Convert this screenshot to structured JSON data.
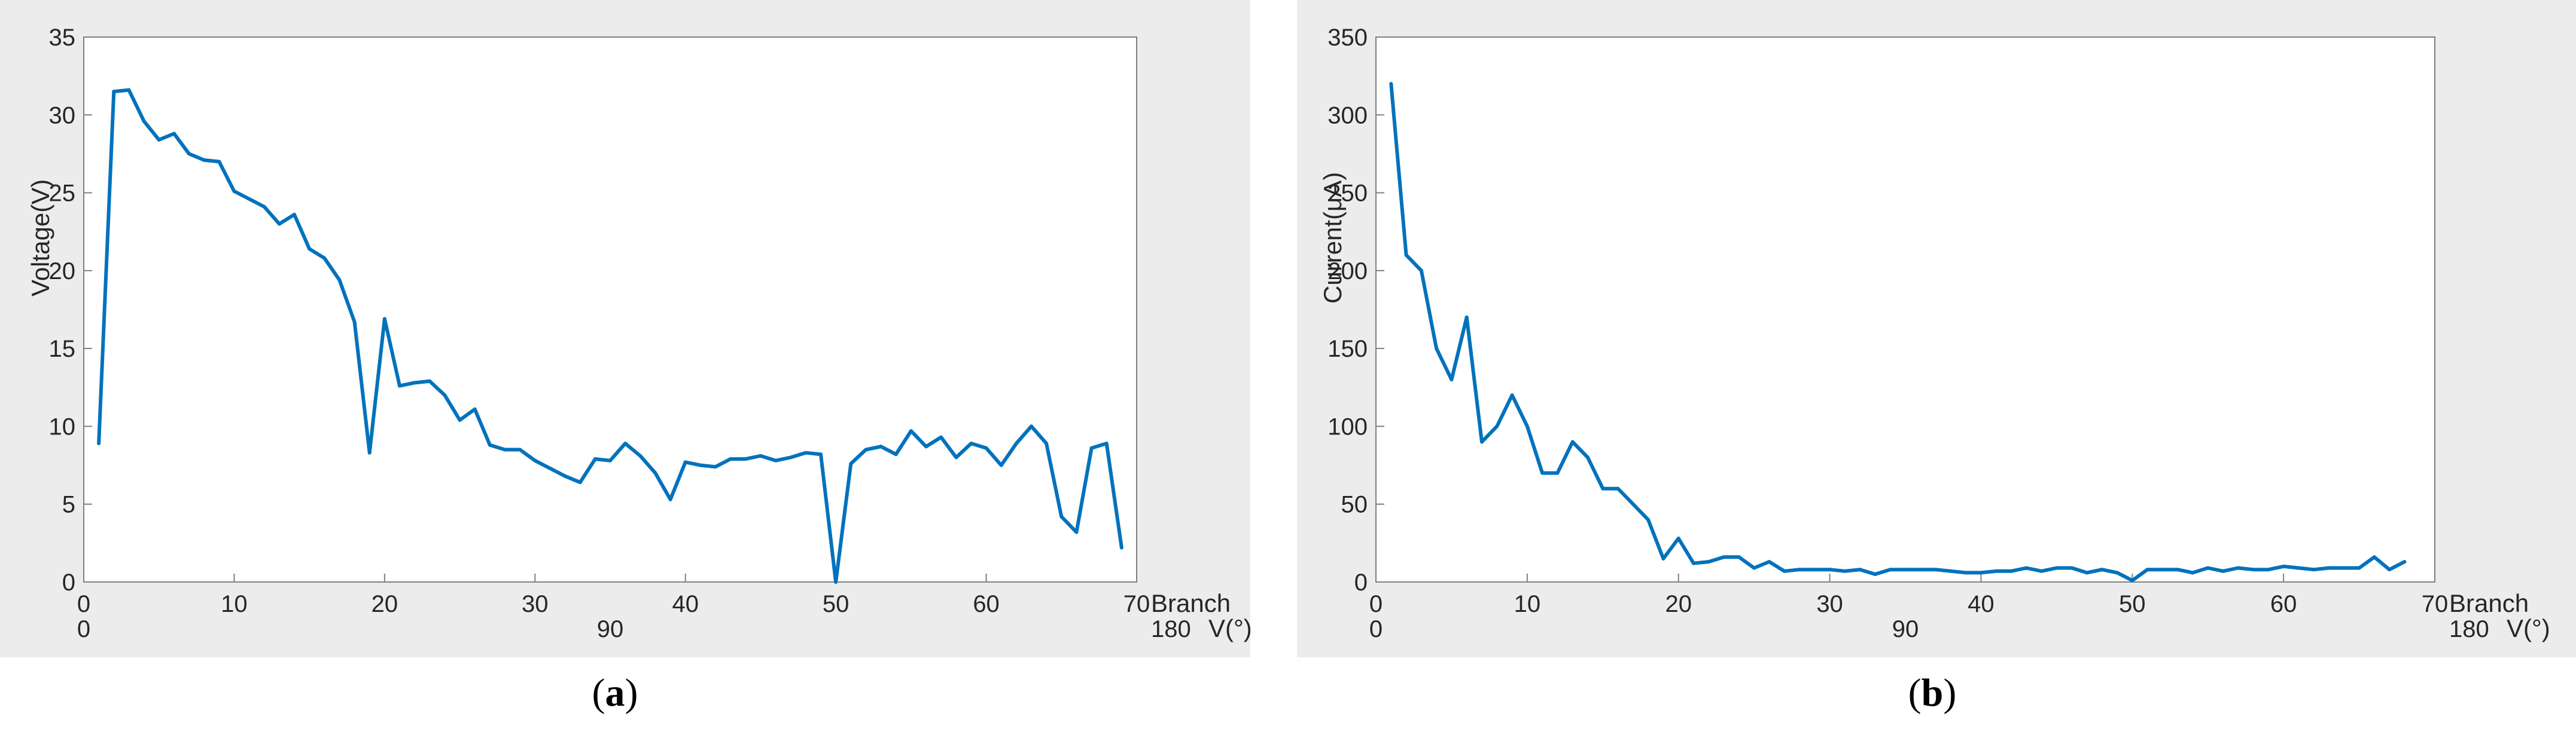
{
  "chart_data": [
    {
      "type": "line",
      "id": "a",
      "caption_label": "a",
      "ylabel": "Voltage(V)",
      "xlabel": "Branch",
      "secondary_xlabel": "V(°)",
      "ylim": [
        0,
        35
      ],
      "xlim": [
        0,
        70
      ],
      "yticks": [
        0,
        5,
        10,
        15,
        20,
        25,
        30,
        35
      ],
      "xticks": [
        0,
        10,
        20,
        30,
        40,
        50,
        60,
        70
      ],
      "secondary_xticks": [
        "0",
        "90",
        "180"
      ],
      "series": [
        {
          "x": [
            1,
            2,
            3,
            4,
            5,
            6,
            7,
            8,
            9,
            10,
            11,
            12,
            13,
            14,
            15,
            16,
            17,
            18,
            19,
            20,
            21,
            22,
            23,
            24,
            25,
            26,
            27,
            28,
            29,
            30,
            31,
            32,
            33,
            34,
            35,
            36,
            37,
            38,
            39,
            40,
            41,
            42,
            43,
            44,
            45,
            46,
            47,
            48,
            49,
            50,
            51,
            52,
            53,
            54,
            55,
            56,
            57,
            58,
            59,
            60,
            61,
            62,
            63,
            64,
            65,
            66,
            67,
            68,
            69
          ],
          "values": [
            8.9,
            31.5,
            31.6,
            29.6,
            28.4,
            28.8,
            27.5,
            27.1,
            27.0,
            25.1,
            24.6,
            24.1,
            23.0,
            23.6,
            21.4,
            20.8,
            19.4,
            16.7,
            8.3,
            16.9,
            12.6,
            12.8,
            12.9,
            12.0,
            10.4,
            11.1,
            8.8,
            8.5,
            8.5,
            7.8,
            7.3,
            6.8,
            6.4,
            7.9,
            7.8,
            8.9,
            8.1,
            7.0,
            5.3,
            7.7,
            7.5,
            7.4,
            7.9,
            7.9,
            8.1,
            7.8,
            8.0,
            8.3,
            8.2,
            0.0,
            7.6,
            8.5,
            8.7,
            8.2,
            9.7,
            8.7,
            9.3,
            8.0,
            8.9,
            8.6,
            7.5,
            8.9,
            10.0,
            8.9,
            4.2,
            3.2,
            8.6,
            8.9,
            2.2
          ]
        }
      ]
    },
    {
      "type": "line",
      "id": "b",
      "caption_label": "b",
      "ylabel": "Current(μA)",
      "xlabel": "Branch",
      "secondary_xlabel": "V(°)",
      "ylim": [
        0,
        350
      ],
      "xlim": [
        0,
        70
      ],
      "yticks": [
        0,
        50,
        100,
        150,
        200,
        250,
        300,
        350
      ],
      "xticks": [
        0,
        10,
        20,
        30,
        40,
        50,
        60,
        70
      ],
      "secondary_xticks": [
        "0",
        "90",
        "180"
      ],
      "series": [
        {
          "x": [
            1,
            2,
            3,
            4,
            5,
            6,
            7,
            8,
            9,
            10,
            11,
            12,
            13,
            14,
            15,
            16,
            17,
            18,
            19,
            20,
            21,
            22,
            23,
            24,
            25,
            26,
            27,
            28,
            29,
            30,
            31,
            32,
            33,
            34,
            35,
            36,
            37,
            38,
            39,
            40,
            41,
            42,
            43,
            44,
            45,
            46,
            47,
            48,
            49,
            50,
            51,
            52,
            53,
            54,
            55,
            56,
            57,
            58,
            59,
            60,
            61,
            62,
            63,
            64,
            65,
            66,
            67,
            68
          ],
          "values": [
            320,
            210,
            200,
            150,
            130,
            170,
            90,
            100,
            120,
            100,
            70,
            70,
            90,
            80,
            60,
            60,
            50,
            40,
            15,
            28,
            12,
            13,
            16,
            16,
            9,
            13,
            7,
            8,
            8,
            8,
            7,
            8,
            5,
            8,
            8,
            8,
            8,
            7,
            6,
            6,
            7,
            7,
            9,
            7,
            9,
            9,
            6,
            8,
            6,
            1,
            8,
            8,
            8,
            6,
            9,
            7,
            9,
            8,
            8,
            10,
            9,
            8,
            9,
            9,
            9,
            16,
            8,
            13
          ]
        }
      ]
    }
  ]
}
